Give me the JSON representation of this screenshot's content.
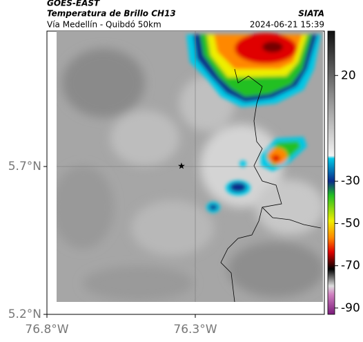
{
  "header": {
    "title": "GOES-EAST",
    "subtitle": "Temperatura de Brillo CH13",
    "source": "SIATA",
    "route": "Vía Medellín - Quibdó 50km",
    "datetime": "2024-06-21 15:39"
  },
  "map": {
    "lon_extent": [
      -76.8,
      -75.865
    ],
    "lat_extent": [
      5.2,
      6.158
    ],
    "lon_ticks": [
      {
        "value": -76.8,
        "label": "76.8°W"
      },
      {
        "value": -76.3,
        "label": "76.3°W"
      }
    ],
    "lat_ticks": [
      {
        "value": 5.7,
        "label": "5.7°N"
      },
      {
        "value": 5.2,
        "label": "5.2°N"
      }
    ]
  },
  "colorbar": {
    "lim": [
      41,
      -93
    ],
    "ticks": [
      20,
      -30,
      -50,
      -70,
      -90
    ]
  }
}
